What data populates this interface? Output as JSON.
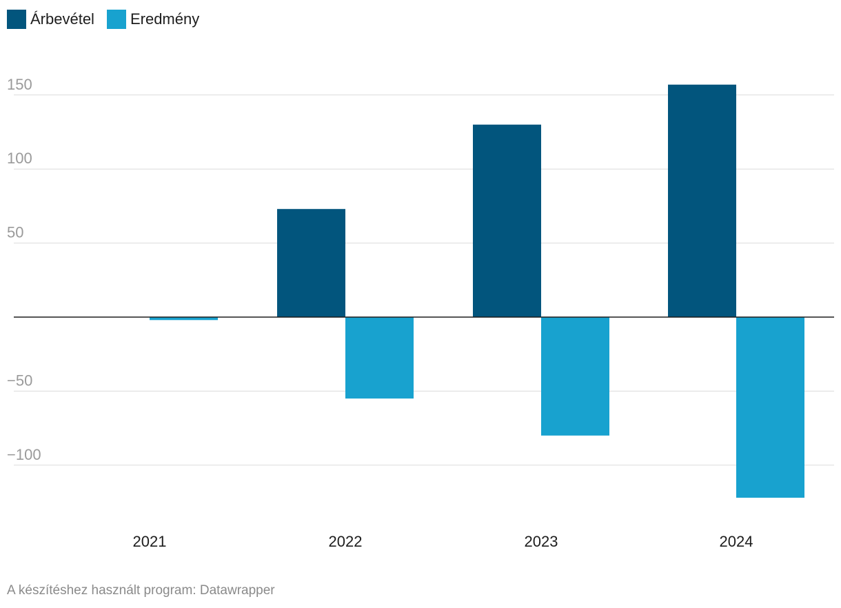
{
  "legend": [
    {
      "label": "Árbevétel",
      "color": "#02557d"
    },
    {
      "label": "Eredmény",
      "color": "#18a2cf"
    }
  ],
  "footer": "A készítéshez használt program: Datawrapper",
  "chart_data": {
    "type": "bar",
    "title": "",
    "xlabel": "",
    "ylabel": "",
    "categories": [
      "2021",
      "2022",
      "2023",
      "2024"
    ],
    "series": [
      {
        "name": "Árbevétel",
        "color": "#02557d",
        "values": [
          0,
          73,
          130,
          157
        ]
      },
      {
        "name": "Eredmény",
        "color": "#18a2cf",
        "values": [
          -2,
          -55,
          -80,
          -122
        ]
      }
    ],
    "yticks": [
      150,
      100,
      50,
      -50,
      -100
    ],
    "ytick_labels": [
      "150",
      "100",
      "50",
      "−50",
      "−100"
    ],
    "ylim": [
      -130,
      165
    ],
    "grid": true
  }
}
